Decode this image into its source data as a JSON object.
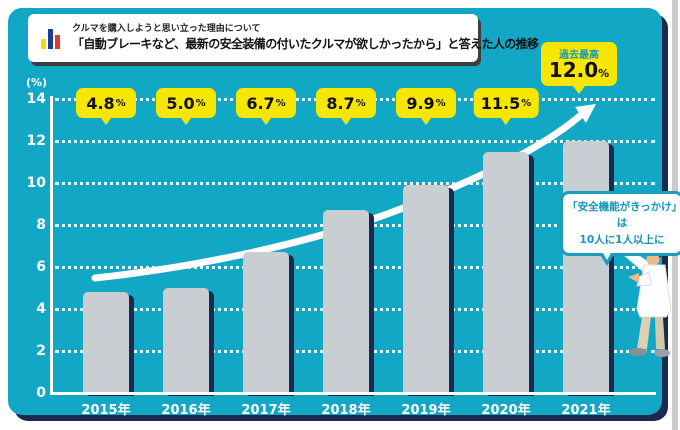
{
  "header": {
    "subtitle": "クルマを購入しようと思い立った理由について",
    "title": "「自動ブレーキなど、最新の安全装備の付いたクルマが欲しかったから」と答えた人の推移",
    "icon": "mini-bar-chart-icon"
  },
  "chart_data": {
    "type": "bar",
    "categories": [
      "2015年",
      "2016年",
      "2017年",
      "2018年",
      "2019年",
      "2020年",
      "2021年"
    ],
    "values": [
      4.8,
      5.0,
      6.7,
      8.7,
      9.9,
      11.5,
      12.0
    ],
    "unit": "%",
    "ylabel": "(%)",
    "ylim": [
      0,
      14
    ],
    "yticks": [
      0,
      2,
      4,
      6,
      8,
      10,
      12,
      14
    ],
    "grid": "dotted-horizontal",
    "legend": "none",
    "trend_annotation": "rising-curve-arrow",
    "record_label": {
      "caption": "過去最高",
      "value": "12.0",
      "unit": "%"
    }
  },
  "annotation": {
    "line1": "「安全機能がきっかけ」は",
    "line2": "10人に1人以上に"
  },
  "colors": {
    "panel_teal": "#12a7c5",
    "bar_gray": "#c9ced3",
    "shadow_navy": "#1a2a4e",
    "highlight_yellow": "#f7e600",
    "bubble_text_teal": "#1b9dbd",
    "axis_white": "#ffffff"
  }
}
